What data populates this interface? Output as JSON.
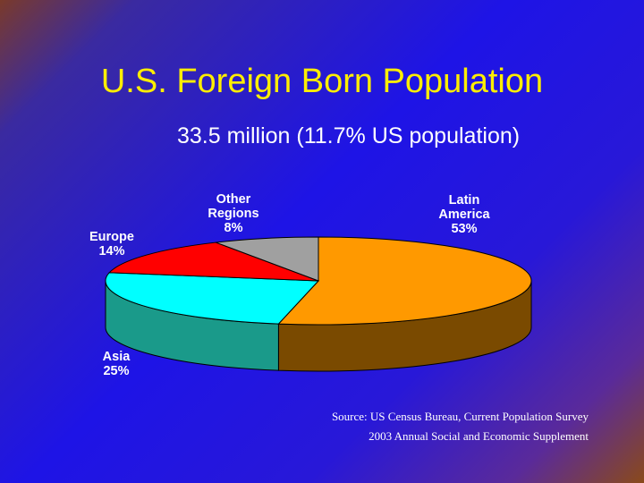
{
  "slide": {
    "title": "U.S. Foreign Born Population",
    "subtitle": "33.5 million (11.7% US population)",
    "source_line1": "Source: US Census Bureau, Current Population Survey",
    "source_line2": "2003 Annual Social and Economic Supplement"
  },
  "chart_data": {
    "type": "pie",
    "title": "",
    "slices": [
      {
        "name_lines": [
          "Latin",
          "America"
        ],
        "pct_label": "53%",
        "value": 53,
        "color": "#ff9900",
        "side_color": "#7a4a00"
      },
      {
        "name_lines": [
          "Asia"
        ],
        "pct_label": "25%",
        "value": 25,
        "color": "#00ffff",
        "side_color": "#1a9a8a"
      },
      {
        "name_lines": [
          "Europe"
        ],
        "pct_label": "14%",
        "value": 14,
        "color": "#ff0000",
        "side_color": "#8a0000"
      },
      {
        "name_lines": [
          "Other",
          "Regions"
        ],
        "pct_label": "8%",
        "value": 8,
        "color": "#a0a0a0",
        "side_color": "#5a5a5a"
      }
    ],
    "legend": "none",
    "view": "3d-tilted"
  }
}
